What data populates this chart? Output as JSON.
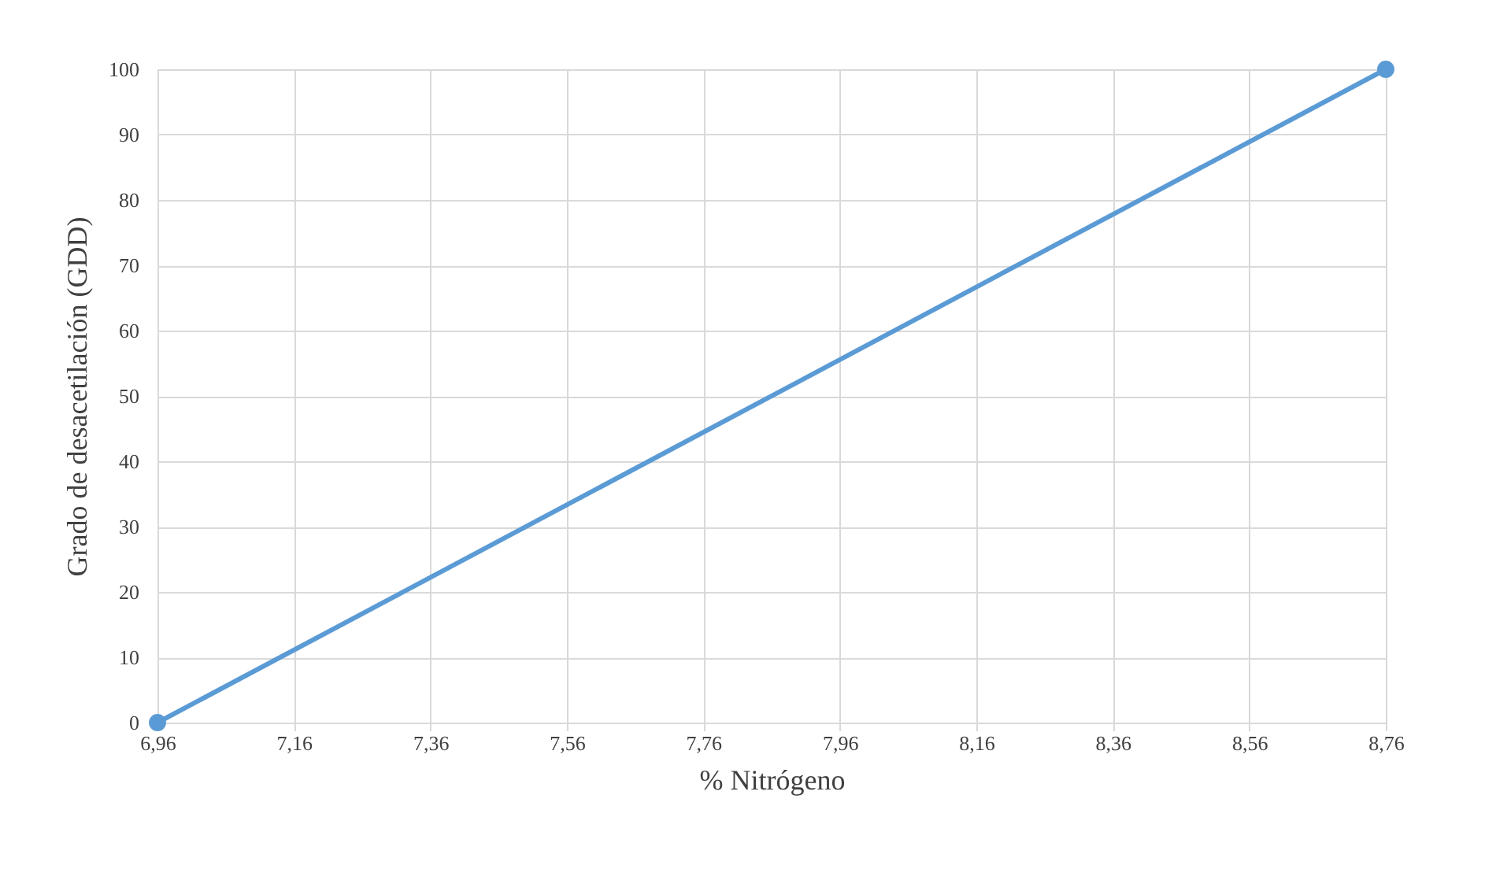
{
  "chart_data": {
    "type": "line",
    "xlabel": "%  Nitrógeno",
    "ylabel": "Grado de desacetilación (GDD)",
    "x": [
      6.96,
      8.76
    ],
    "series": [
      {
        "color": "#5b9bd5",
        "values": [
          0,
          100
        ]
      }
    ],
    "xlim": [
      6.96,
      8.76
    ],
    "xticks": [
      {
        "value": 6.96,
        "label": "6,96"
      },
      {
        "value": 7.16,
        "label": "7,16"
      },
      {
        "value": 7.36,
        "label": "7,36"
      },
      {
        "value": 7.56,
        "label": "7,56"
      },
      {
        "value": 7.76,
        "label": "7,76"
      },
      {
        "value": 7.96,
        "label": "7,96"
      },
      {
        "value": 8.16,
        "label": "8,16"
      },
      {
        "value": 8.36,
        "label": "8,36"
      },
      {
        "value": 8.56,
        "label": "8,56"
      },
      {
        "value": 8.76,
        "label": "8,76"
      }
    ],
    "ylim": [
      0,
      100
    ],
    "yticks": [
      0,
      10,
      20,
      30,
      40,
      50,
      60,
      70,
      80,
      90,
      100
    ],
    "grid": true,
    "marker": "circle",
    "line_style": "solid"
  }
}
